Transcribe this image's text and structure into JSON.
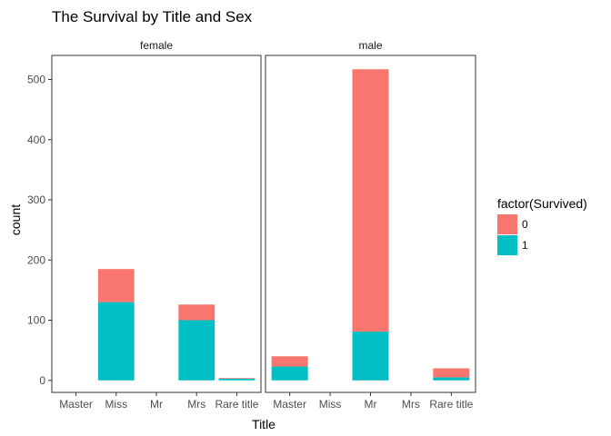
{
  "chart_data": {
    "type": "bar",
    "stacked": true,
    "title": "The Survival by Title and Sex",
    "xlabel": "Title",
    "ylabel": "count",
    "ylim": [
      -20,
      540
    ],
    "yticks": [
      0,
      100,
      200,
      300,
      400,
      500
    ],
    "categories": [
      "Master",
      "Miss",
      "Mr",
      "Mrs",
      "Rare title"
    ],
    "facets": [
      {
        "label": "female",
        "series": [
          {
            "name": "0",
            "values": [
              0,
              55,
              0,
              26,
              1
            ]
          },
          {
            "name": "1",
            "values": [
              0,
              130,
              0,
              100,
              3
            ]
          }
        ]
      },
      {
        "label": "male",
        "series": [
          {
            "name": "0",
            "values": [
              17,
              0,
              436,
              0,
              15
            ]
          },
          {
            "name": "1",
            "values": [
              23,
              0,
              81,
              0,
              5
            ]
          }
        ]
      }
    ],
    "legend": {
      "title": "factor(Survived)",
      "position": "right",
      "entries": [
        {
          "label": "0",
          "color": "#F8766D"
        },
        {
          "label": "1",
          "color": "#00BFC4"
        }
      ]
    },
    "grid": false
  }
}
